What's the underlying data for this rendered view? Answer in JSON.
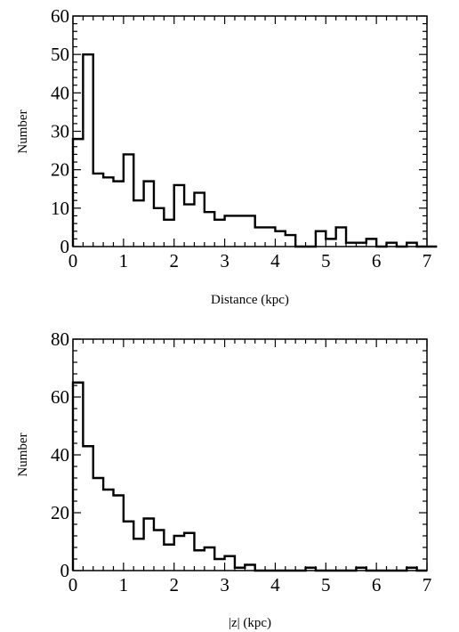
{
  "chart_data": [
    {
      "type": "histogram",
      "title": "",
      "xlabel": "Distance (kpc)",
      "ylabel": "Number",
      "xlim": [
        0,
        7
      ],
      "ylim": [
        0,
        60
      ],
      "xticks": [
        "0",
        "1",
        "2",
        "3",
        "4",
        "5",
        "6",
        "7"
      ],
      "yticks": [
        "0",
        "10",
        "20",
        "30",
        "40",
        "50",
        "60"
      ],
      "x_minor_step": 0.2,
      "y_minor_step": 2,
      "bin_width": 0.2,
      "bin_start": 0,
      "values": [
        28,
        50,
        19,
        18,
        17,
        24,
        12,
        17,
        10,
        7,
        16,
        11,
        14,
        9,
        7,
        8,
        8,
        8,
        5,
        5,
        4,
        3,
        0,
        0,
        4,
        2,
        5,
        1,
        1,
        2,
        0,
        1,
        0,
        1,
        0,
        0
      ],
      "grid": false,
      "legend": "none"
    },
    {
      "type": "histogram",
      "title": "",
      "xlabel": "|z| (kpc)",
      "ylabel": "Number",
      "xlim": [
        0,
        7
      ],
      "ylim": [
        0,
        80
      ],
      "xticks": [
        "0",
        "1",
        "2",
        "3",
        "4",
        "5",
        "6",
        "7"
      ],
      "yticks": [
        "0",
        "20",
        "40",
        "60",
        "80"
      ],
      "x_minor_step": 0.2,
      "y_minor_step": 4,
      "bin_width": 0.2,
      "bin_start": 0,
      "values": [
        65,
        43,
        32,
        28,
        26,
        17,
        11,
        18,
        14,
        9,
        12,
        13,
        7,
        8,
        4,
        5,
        1,
        2,
        0,
        0,
        0,
        0,
        0,
        1,
        0,
        0,
        0,
        0,
        1,
        0,
        0,
        0,
        0,
        1,
        0
      ],
      "grid": false,
      "legend": "none"
    }
  ]
}
